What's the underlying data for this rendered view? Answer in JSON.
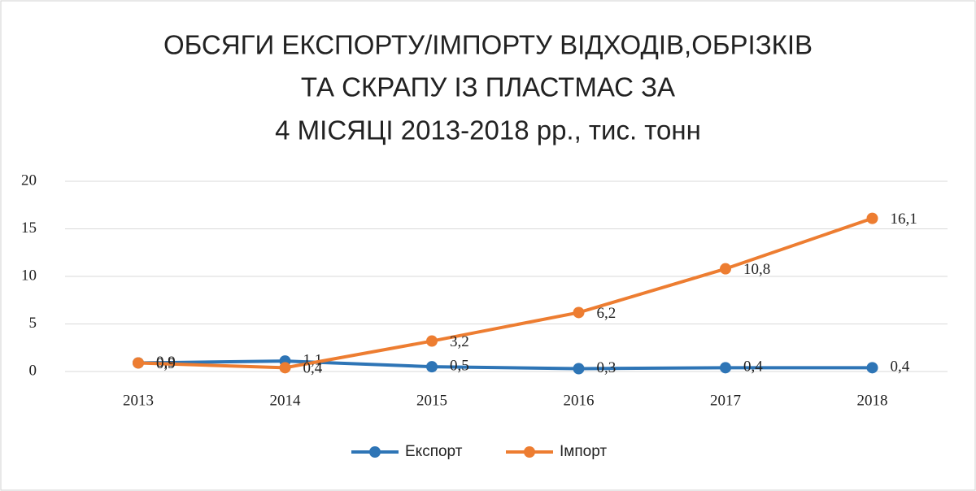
{
  "chart_data": {
    "type": "line",
    "title": [
      "ОБСЯГИ ЕКСПОРТУ/ІМПОРТУ ВІДХОДІВ,ОБРІЗКІВ",
      "ТА СКРАПУ ІЗ ПЛАСТМАС ЗА",
      "4 МІСЯЦІ 2013-2018 рр., тис. тонн"
    ],
    "categories": [
      "2013",
      "2014",
      "2015",
      "2016",
      "2017",
      "2018"
    ],
    "series": [
      {
        "name": "Експорт",
        "color": "#2e75b6",
        "values": [
          0.9,
          1.1,
          0.5,
          0.3,
          0.4,
          0.4
        ],
        "value_labels": [
          "0,9",
          "1,1",
          "0,5",
          "0,3",
          "0,4",
          "0,4"
        ]
      },
      {
        "name": "Імпорт",
        "color": "#ed7d31",
        "values": [
          0.9,
          0.4,
          3.2,
          6.2,
          10.8,
          16.1
        ],
        "value_labels": [
          "0,9",
          "0,4",
          "3,2",
          "6,2",
          "10,8",
          "16,1"
        ]
      }
    ],
    "ylim": [
      0,
      20
    ],
    "yticks": [
      0,
      5,
      10,
      15,
      20
    ],
    "grid": true,
    "legend": "bottom"
  }
}
